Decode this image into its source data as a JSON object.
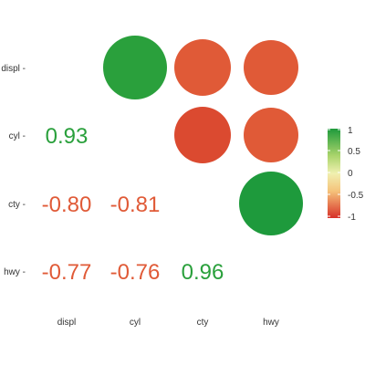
{
  "chart_data": {
    "type": "heatmap",
    "variables": [
      "displ",
      "cyl",
      "cty",
      "hwy"
    ],
    "correlations": [
      {
        "row": "cyl",
        "col": "displ",
        "value": 0.93
      },
      {
        "row": "cty",
        "col": "displ",
        "value": -0.8
      },
      {
        "row": "cty",
        "col": "cyl",
        "value": -0.81
      },
      {
        "row": "hwy",
        "col": "displ",
        "value": -0.77
      },
      {
        "row": "hwy",
        "col": "cyl",
        "value": -0.76
      },
      {
        "row": "hwy",
        "col": "cty",
        "value": 0.96
      }
    ],
    "labels": {
      "cyl_displ": "0.93",
      "cty_displ": "-0.80",
      "cty_cyl": "-0.81",
      "hwy_displ": "-0.77",
      "hwy_cyl": "-0.76",
      "hwy_cty": "0.96"
    },
    "upper_triangle": "circles",
    "lower_triangle": "numbers",
    "legend": {
      "position": "right",
      "ticks": [
        "1",
        "0.5",
        "0",
        "-0.5",
        "-1"
      ],
      "tick_values": [
        1,
        0.5,
        0,
        -0.5,
        -1
      ],
      "gradient_colors": [
        "#1e9a3c",
        "#e8f0a0",
        "#f5d78c",
        "#d73027"
      ]
    },
    "colors": {
      "positive": "#2aa03c",
      "negative": "#e05a37",
      "axis_text": "#333333"
    }
  }
}
